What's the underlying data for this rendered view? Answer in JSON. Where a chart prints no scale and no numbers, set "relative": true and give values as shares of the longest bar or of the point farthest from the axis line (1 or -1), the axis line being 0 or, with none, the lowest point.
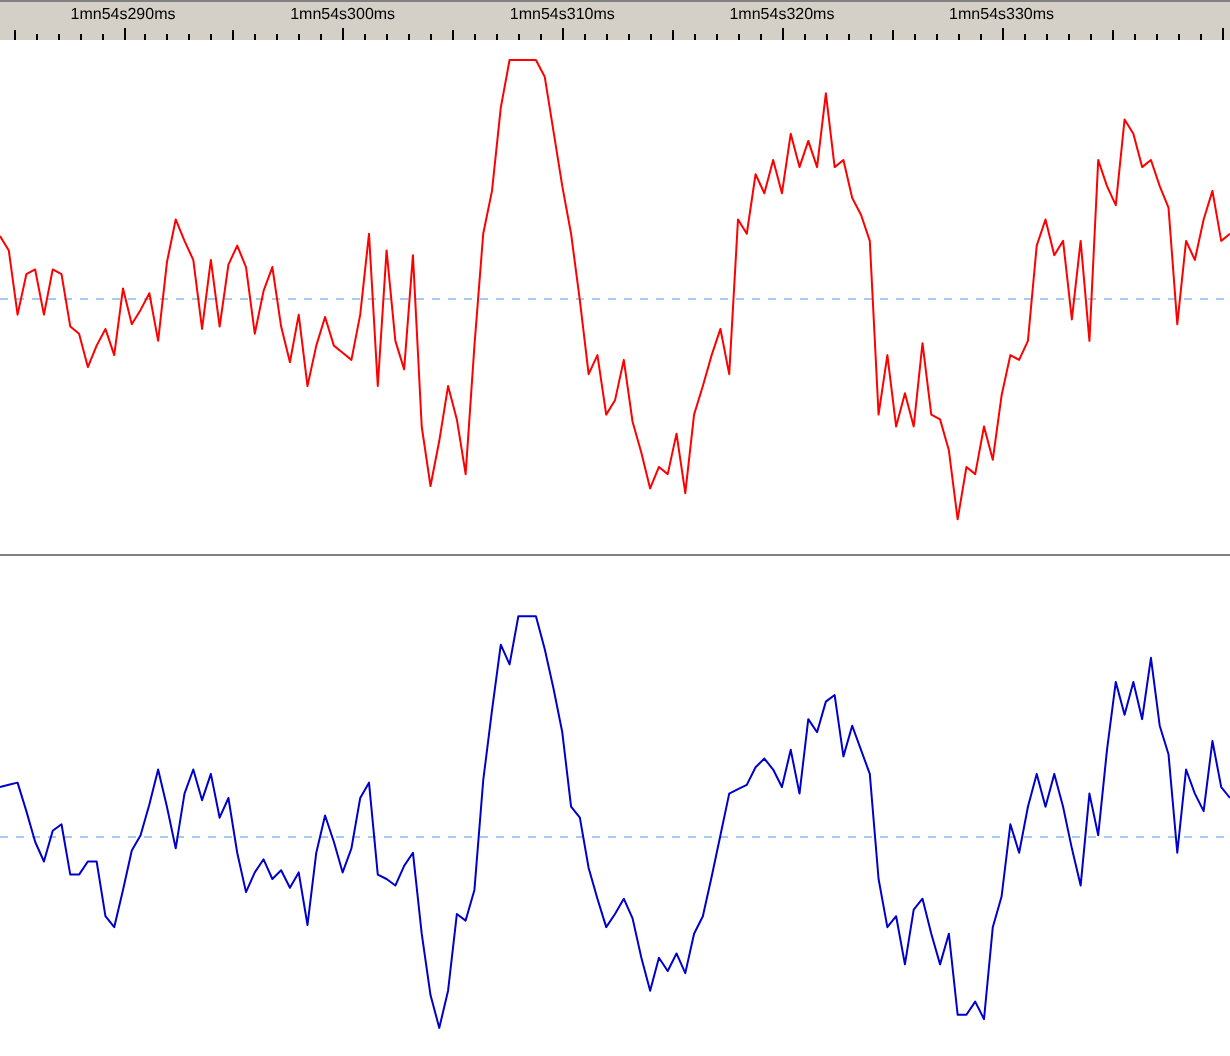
{
  "chart_data": [
    {
      "type": "line",
      "relative": true,
      "tick_labels": "x",
      "categories": [
        null,
        null,
        null,
        null,
        null,
        null,
        null,
        null,
        null,
        null,
        null,
        null,
        null,
        null,
        "1mn54s290ms",
        null,
        null,
        null,
        null,
        null,
        null,
        null,
        null,
        null,
        null,
        null,
        null,
        null,
        null,
        null,
        null,
        null,
        null,
        null,
        null,
        null,
        null,
        null,
        null,
        "1mn54s300ms",
        null,
        null,
        null,
        null,
        null,
        null,
        null,
        null,
        null,
        null,
        null,
        null,
        null,
        null,
        null,
        null,
        null,
        null,
        null,
        null,
        null,
        null,
        null,
        null,
        "1mn54s310ms",
        null,
        null,
        null,
        null,
        null,
        null,
        null,
        null,
        null,
        null,
        null,
        null,
        null,
        null,
        null,
        null,
        null,
        null,
        null,
        null,
        null,
        null,
        null,
        null,
        "1mn54s320ms",
        null,
        null,
        null,
        null,
        null,
        null,
        null,
        null,
        null,
        null,
        null,
        null,
        null,
        null,
        null,
        null,
        null,
        null,
        null,
        null,
        null,
        null,
        null,
        null,
        "1mn54s330ms",
        null,
        null,
        null,
        null,
        null,
        null,
        null,
        null,
        null,
        null,
        null,
        null,
        null,
        null,
        null,
        null,
        null,
        null,
        null,
        null,
        null,
        null,
        null,
        null,
        null,
        null
      ],
      "ref_lines": [
        {
          "axis": "y",
          "value": 0,
          "color": "#a6caf0",
          "line_style": "dashed"
        }
      ],
      "series": [
        {
          "color": "#ff0000",
          "values": [
            0.26,
            0.2,
            -0.07,
            0.1,
            0.12,
            -0.07,
            0.12,
            0.1,
            -0.12,
            -0.15,
            -0.29,
            -0.2,
            -0.13,
            -0.24,
            0.04,
            -0.11,
            -0.05,
            0.02,
            -0.18,
            0.15,
            0.33,
            0.24,
            0.16,
            -0.13,
            0.16,
            -0.12,
            0.14,
            0.22,
            0.13,
            -0.15,
            0.03,
            0.13,
            -0.12,
            -0.27,
            -0.07,
            -0.37,
            -0.2,
            -0.08,
            -0.2,
            -0.23,
            -0.26,
            -0.07,
            0.27,
            -0.37,
            0.2,
            -0.18,
            -0.3,
            0.18,
            -0.54,
            -0.79,
            -0.6,
            -0.37,
            -0.51,
            -0.74,
            -0.2,
            0.27,
            0.45,
            0.8,
            1,
            1,
            1,
            1,
            0.93,
            0.7,
            0.47,
            0.27,
            -0.01,
            -0.32,
            -0.24,
            -0.49,
            -0.43,
            -0.26,
            -0.52,
            -0.65,
            -0.8,
            -0.71,
            -0.74,
            -0.57,
            -0.82,
            -0.49,
            -0.37,
            -0.24,
            -0.13,
            -0.32,
            0.33,
            0.27,
            0.52,
            0.44,
            0.58,
            0.44,
            0.69,
            0.55,
            0.66,
            0.55,
            0.86,
            0.55,
            0.58,
            0.42,
            0.35,
            0.24,
            -0.49,
            -0.24,
            -0.54,
            -0.4,
            -0.54,
            -0.19,
            -0.49,
            -0.51,
            -0.64,
            -0.93,
            -0.71,
            -0.74,
            -0.54,
            -0.68,
            -0.41,
            -0.24,
            -0.26,
            -0.18,
            0.22,
            0.33,
            0.18,
            0.24,
            -0.09,
            0.24,
            -0.18,
            0.58,
            0.47,
            0.39,
            0.75,
            0.69,
            0.55,
            0.58,
            0.47,
            0.38,
            -0.11,
            0.24,
            0.16,
            0.33,
            0.45,
            0.24,
            0.27
          ]
        }
      ]
    },
    {
      "type": "line",
      "relative": true,
      "tick_labels": false,
      "categories": [
        null,
        null,
        null,
        null,
        null,
        null,
        null,
        null,
        null,
        null,
        null,
        null,
        null,
        null,
        null,
        null,
        null,
        null,
        null,
        null,
        null,
        null,
        null,
        null,
        null,
        null,
        null,
        null,
        null,
        null,
        null,
        null,
        null,
        null,
        null,
        null,
        null,
        null,
        null,
        null,
        null,
        null,
        null,
        null,
        null,
        null,
        null,
        null,
        null,
        null,
        null,
        null,
        null,
        null,
        null,
        null,
        null,
        null,
        null,
        null,
        null,
        null,
        null,
        null,
        null,
        null,
        null,
        null,
        null,
        null,
        null,
        null,
        null,
        null,
        null,
        null,
        null,
        null,
        null,
        null,
        null,
        null,
        null,
        null,
        null,
        null,
        null,
        null,
        null,
        null,
        null,
        null,
        null,
        null,
        null,
        null,
        null,
        null,
        null,
        null,
        null,
        null,
        null,
        null,
        null,
        null,
        null,
        null,
        null,
        null,
        null,
        null,
        null,
        null,
        null,
        null,
        null,
        null,
        null,
        null,
        null,
        null,
        null,
        null,
        null,
        null,
        null,
        null,
        null,
        null,
        null,
        null,
        null,
        null,
        null,
        null,
        null,
        null,
        null,
        null,
        null
      ],
      "ref_lines": [
        {
          "axis": "y",
          "value": 0,
          "color": "#a6caf0",
          "line_style": "dashed"
        }
      ],
      "series": [
        {
          "color": "#0000cc",
          "values": [
            0.22,
            0.23,
            0.24,
            0.11,
            -0.03,
            -0.12,
            0.02,
            0.05,
            -0.18,
            -0.18,
            -0.12,
            -0.12,
            -0.37,
            -0.42,
            -0.25,
            -0.07,
            0,
            0.14,
            0.3,
            0.13,
            -0.06,
            0.19,
            0.3,
            0.16,
            0.28,
            0.08,
            0.17,
            -0.08,
            -0.26,
            -0.17,
            -0.11,
            -0.2,
            -0.16,
            -0.24,
            -0.17,
            -0.41,
            -0.08,
            0.09,
            -0.03,
            -0.17,
            -0.06,
            0.17,
            0.24,
            -0.18,
            -0.2,
            -0.23,
            -0.14,
            -0.08,
            -0.45,
            -0.73,
            -0.88,
            -0.71,
            -0.36,
            -0.39,
            -0.25,
            0.25,
            0.57,
            0.87,
            0.78,
            1,
            1,
            1,
            0.85,
            0.67,
            0.47,
            0.13,
            0.08,
            -0.15,
            -0.29,
            -0.42,
            -0.36,
            -0.29,
            -0.38,
            -0.56,
            -0.71,
            -0.56,
            -0.62,
            -0.54,
            -0.63,
            -0.45,
            -0.37,
            -0.19,
            0,
            0.19,
            0.21,
            0.23,
            0.31,
            0.35,
            0.3,
            0.22,
            0.39,
            0.19,
            0.53,
            0.47,
            0.61,
            0.64,
            0.36,
            0.5,
            0.39,
            0.28,
            -0.2,
            -0.42,
            -0.37,
            -0.59,
            -0.34,
            -0.29,
            -0.45,
            -0.59,
            -0.45,
            -0.82,
            -0.82,
            -0.76,
            -0.84,
            -0.42,
            -0.28,
            0.05,
            -0.08,
            0.13,
            0.28,
            0.13,
            0.28,
            0.13,
            -0.06,
            -0.23,
            0.19,
            0,
            0.39,
            0.7,
            0.55,
            0.7,
            0.53,
            0.81,
            0.5,
            0.37,
            -0.08,
            0.3,
            0.19,
            0.11,
            0.43,
            0.22,
            0.17
          ]
        }
      ]
    }
  ]
}
